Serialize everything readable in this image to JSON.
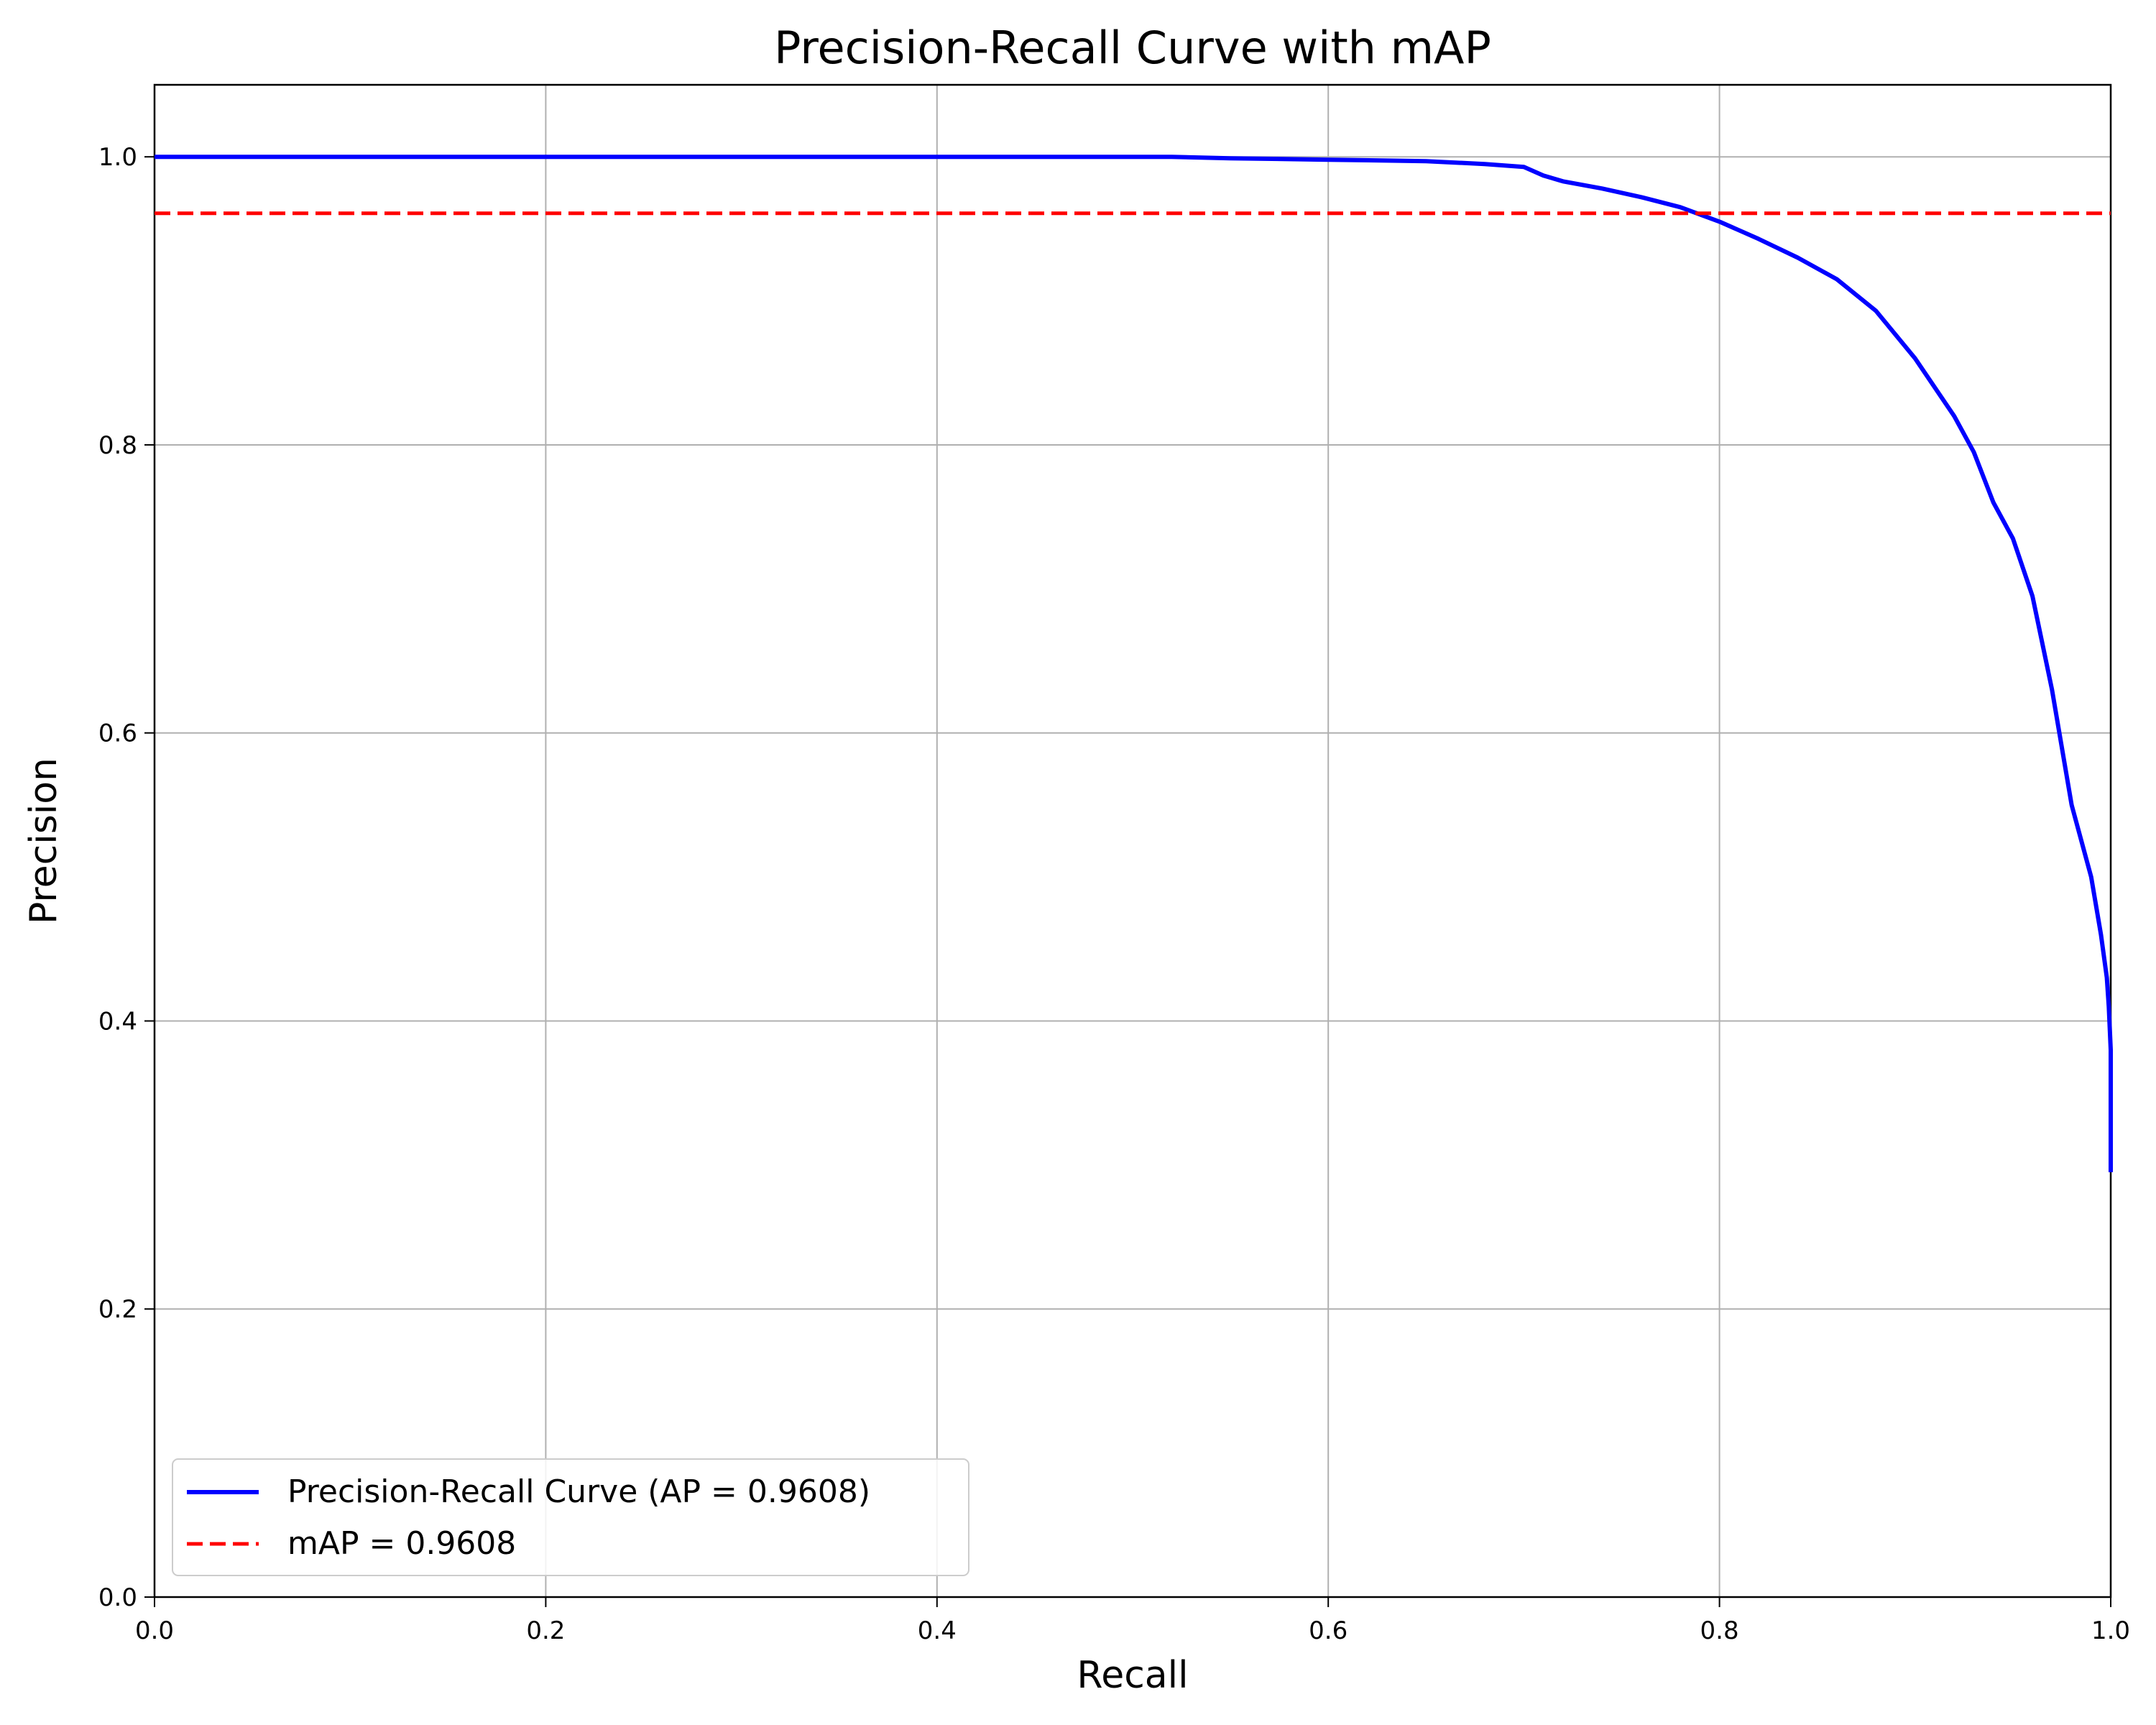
{
  "chart_data": {
    "type": "line",
    "title": "Precision-Recall Curve with mAP",
    "xlabel": "Recall",
    "ylabel": "Precision",
    "xlim": [
      0.0,
      1.0
    ],
    "ylim": [
      0.0,
      1.05
    ],
    "xticks": [
      "0.0",
      "0.2",
      "0.4",
      "0.6",
      "0.8",
      "1.0"
    ],
    "yticks": [
      "0.0",
      "0.2",
      "0.4",
      "0.6",
      "0.8",
      "1.0"
    ],
    "grid": true,
    "legend_location": "lower-left",
    "series": [
      {
        "name": "Precision-Recall Curve (AP = 0.9608)",
        "color": "#0000ff",
        "style": "solid",
        "x": [
          0.0,
          0.1,
          0.2,
          0.3,
          0.4,
          0.5,
          0.52,
          0.55,
          0.6,
          0.65,
          0.68,
          0.7,
          0.71,
          0.72,
          0.74,
          0.76,
          0.78,
          0.8,
          0.82,
          0.84,
          0.86,
          0.88,
          0.9,
          0.92,
          0.93,
          0.94,
          0.95,
          0.96,
          0.97,
          0.98,
          0.99,
          0.995,
          0.998,
          0.999,
          1.0,
          1.0
        ],
        "y": [
          1.0,
          1.0,
          1.0,
          1.0,
          1.0,
          1.0,
          1.0,
          0.999,
          0.998,
          0.997,
          0.995,
          0.993,
          0.987,
          0.983,
          0.978,
          0.972,
          0.965,
          0.955,
          0.943,
          0.93,
          0.915,
          0.893,
          0.86,
          0.82,
          0.795,
          0.76,
          0.735,
          0.695,
          0.63,
          0.55,
          0.5,
          0.46,
          0.43,
          0.41,
          0.38,
          0.295
        ]
      },
      {
        "name": "mAP = 0.9608",
        "color": "#ff0000",
        "style": "dashed",
        "x": [
          0.0,
          1.0
        ],
        "y": [
          0.9608,
          0.9608
        ]
      }
    ]
  }
}
